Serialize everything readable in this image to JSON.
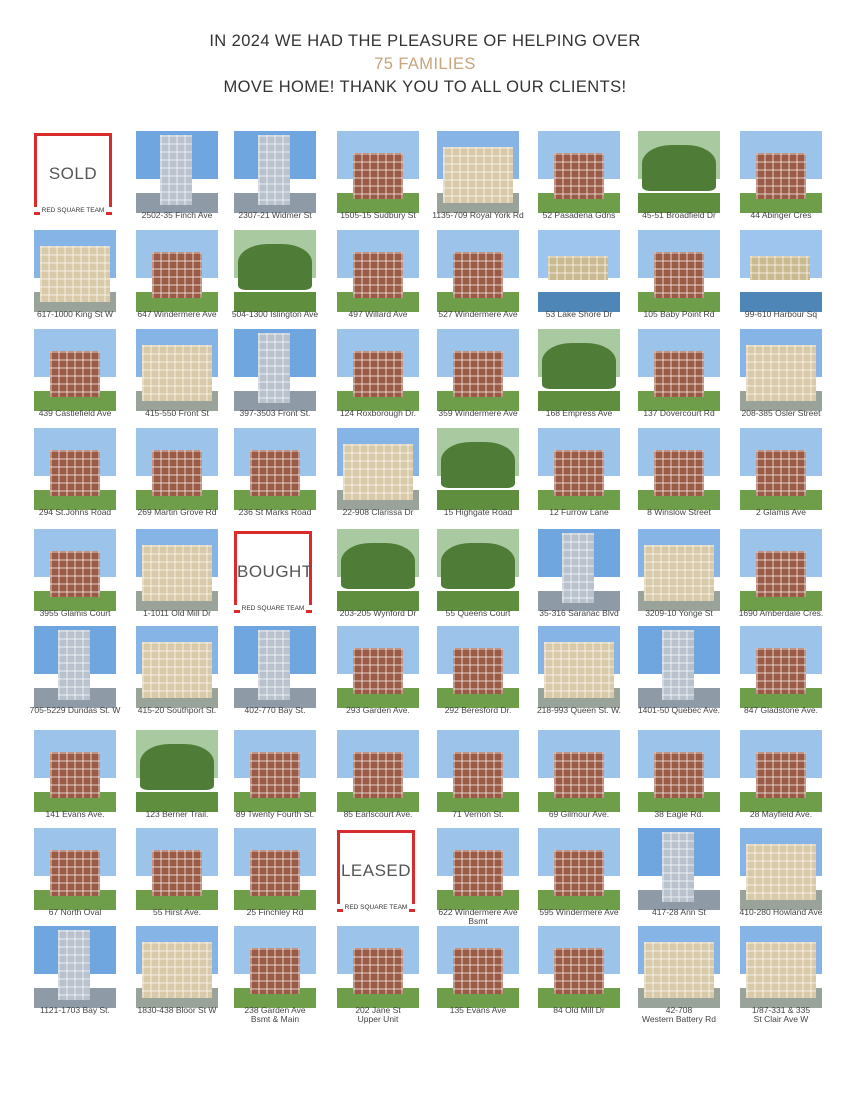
{
  "header": {
    "line1": "IN 2024 WE HAD THE PLEASURE OF HELPING OVER",
    "line2": "75 FAMILIES",
    "line3": "MOVE HOME! THANK YOU TO ALL OUR CLIENTS!"
  },
  "colors": {
    "accent": "#c8a47a",
    "badge_red": "#d92b2b"
  },
  "tiles": [
    {
      "type": "badge",
      "word": "SOLD",
      "team": "RED SQUARE TEAM"
    },
    {
      "type": "photo",
      "caption": "2502-35 Finch Ave",
      "kind": "tower"
    },
    {
      "type": "photo",
      "caption": "2307-21 Widmer St",
      "kind": "tower"
    },
    {
      "type": "photo",
      "caption": "1505-15 Sudbury St",
      "kind": "house"
    },
    {
      "type": "photo",
      "caption": "1135-709 Royal York Rd",
      "kind": "condo"
    },
    {
      "type": "photo",
      "caption": "52 Pasadena Gdns",
      "kind": "house"
    },
    {
      "type": "photo",
      "caption": "45-51 Broadfield Dr",
      "kind": "tree"
    },
    {
      "type": "photo",
      "caption": "44 Abinger Cres",
      "kind": "house"
    },
    {
      "type": "photo",
      "caption": "617-1000 King St W",
      "kind": "condo"
    },
    {
      "type": "photo",
      "caption": "647 Windermere Ave",
      "kind": "house"
    },
    {
      "type": "photo",
      "caption": "504-1300 Islington Ave",
      "kind": "tree"
    },
    {
      "type": "photo",
      "caption": "497 Willard Ave",
      "kind": "house"
    },
    {
      "type": "photo",
      "caption": "527 Windermere Ave",
      "kind": "house"
    },
    {
      "type": "photo",
      "caption": "53 Lake Shore Dr",
      "kind": "lake"
    },
    {
      "type": "photo",
      "caption": "105 Baby Point Rd",
      "kind": "house"
    },
    {
      "type": "photo",
      "caption": "99-610 Harbour Sq",
      "kind": "lake"
    },
    {
      "type": "photo",
      "caption": "439 Castlefield Ave",
      "kind": "house"
    },
    {
      "type": "photo",
      "caption": "415-550 Front St",
      "kind": "condo"
    },
    {
      "type": "photo",
      "caption": "397-3503 Front St.",
      "kind": "tower"
    },
    {
      "type": "photo",
      "caption": "124 Roxborough Dr.",
      "kind": "house"
    },
    {
      "type": "photo",
      "caption": "359 Windermere Ave",
      "kind": "house"
    },
    {
      "type": "photo",
      "caption": "168 Empress Ave",
      "kind": "tree"
    },
    {
      "type": "photo",
      "caption": "137 Dovercourt Rd",
      "kind": "house"
    },
    {
      "type": "photo",
      "caption": "208-385 Osler Street",
      "kind": "condo"
    },
    {
      "type": "photo",
      "caption": "294 St.Johns Road",
      "kind": "house"
    },
    {
      "type": "photo",
      "caption": "269 Martin Grove Rd",
      "kind": "house"
    },
    {
      "type": "photo",
      "caption": "236 St Marks Road",
      "kind": "house"
    },
    {
      "type": "photo",
      "caption": "22-908 Clarissa Dr",
      "kind": "condo"
    },
    {
      "type": "photo",
      "caption": "15 Highgate Road",
      "kind": "tree"
    },
    {
      "type": "photo",
      "caption": "12 Furrow Lane",
      "kind": "house"
    },
    {
      "type": "photo",
      "caption": "8 Winslow Street",
      "kind": "house"
    },
    {
      "type": "photo",
      "caption": "2 Glamis Ave",
      "kind": "house"
    },
    {
      "type": "photo",
      "caption": "3955 Glamis Court",
      "kind": "house"
    },
    {
      "type": "photo",
      "caption": "1-1011 Old Mill Dr",
      "kind": "condo"
    },
    {
      "type": "badge",
      "word": "BOUGHT",
      "team": "RED SQUARE TEAM"
    },
    {
      "type": "photo",
      "caption": "203-205 Wynford Dr",
      "kind": "tree"
    },
    {
      "type": "photo",
      "caption": "55 Queens Court",
      "kind": "tree"
    },
    {
      "type": "photo",
      "caption": "35-316 Saranac Blvd",
      "kind": "tower"
    },
    {
      "type": "photo",
      "caption": "3209-10 Yonge St",
      "kind": "condo"
    },
    {
      "type": "photo",
      "caption": "1690 Amberdale Cres.",
      "kind": "house"
    },
    {
      "type": "photo",
      "caption": "705-5229 Dundas St. W",
      "kind": "tower"
    },
    {
      "type": "photo",
      "caption": "415-20 Southport St.",
      "kind": "condo"
    },
    {
      "type": "photo",
      "caption": "402-770 Bay St.",
      "kind": "tower"
    },
    {
      "type": "photo",
      "caption": "293 Garden Ave.",
      "kind": "house"
    },
    {
      "type": "photo",
      "caption": "292 Beresford Dr.",
      "kind": "house"
    },
    {
      "type": "photo",
      "caption": "218-993 Queen St. W.",
      "kind": "condo"
    },
    {
      "type": "photo",
      "caption": "1401-50 Quebec Ave.",
      "kind": "tower"
    },
    {
      "type": "photo",
      "caption": "847 Gladstone Ave.",
      "kind": "house"
    },
    {
      "type": "photo",
      "caption": "141 Evans Ave.",
      "kind": "house"
    },
    {
      "type": "photo",
      "caption": "123 Berner Trail.",
      "kind": "tree"
    },
    {
      "type": "photo",
      "caption": "89 Twenty Fourth St.",
      "kind": "house"
    },
    {
      "type": "photo",
      "caption": "85 Earlscourt Ave.",
      "kind": "house"
    },
    {
      "type": "photo",
      "caption": "71 Vernon St.",
      "kind": "house"
    },
    {
      "type": "photo",
      "caption": "69 Gilmour Ave.",
      "kind": "house"
    },
    {
      "type": "photo",
      "caption": "38 Eagle Rd.",
      "kind": "house"
    },
    {
      "type": "photo",
      "caption": "28 Mayfield Ave.",
      "kind": "house"
    },
    {
      "type": "photo",
      "caption": "67 North Oval",
      "kind": "house"
    },
    {
      "type": "photo",
      "caption": "55 Hirst Ave.",
      "kind": "house"
    },
    {
      "type": "photo",
      "caption": "25 Finchley Rd",
      "kind": "house"
    },
    {
      "type": "badge",
      "word": "LEASED",
      "team": "RED SQUARE TEAM"
    },
    {
      "type": "photo",
      "caption": "622 Windermere Ave\nBsmt",
      "kind": "house"
    },
    {
      "type": "photo",
      "caption": "595 Windermere Ave",
      "kind": "house"
    },
    {
      "type": "photo",
      "caption": "417-28 Ann St",
      "kind": "tower"
    },
    {
      "type": "photo",
      "caption": "410-280 Howland Ave",
      "kind": "condo"
    },
    {
      "type": "photo",
      "caption": "1121-1703 Bay St.",
      "kind": "tower"
    },
    {
      "type": "photo",
      "caption": "1830-438 Bloor St W",
      "kind": "condo"
    },
    {
      "type": "photo",
      "caption": "238 Garden Ave\nBsmt & Main",
      "kind": "house"
    },
    {
      "type": "photo",
      "caption": "202 Jane St\nUpper Unit",
      "kind": "house"
    },
    {
      "type": "photo",
      "caption": "135 Evans Ave",
      "kind": "house"
    },
    {
      "type": "photo",
      "caption": "84 Old Mill Dr",
      "kind": "house"
    },
    {
      "type": "photo",
      "caption": "42-708\nWestern Battery Rd",
      "kind": "condo"
    },
    {
      "type": "photo",
      "caption": "1/87-331 & 335\nSt Clair Ave W",
      "kind": "condo"
    }
  ]
}
